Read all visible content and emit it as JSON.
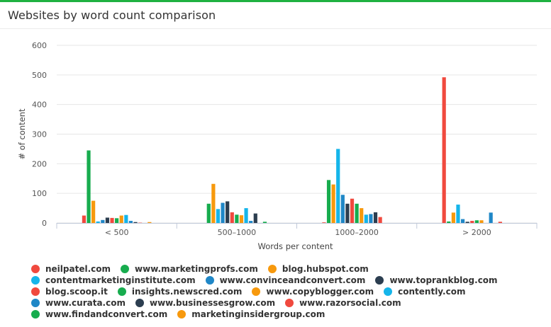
{
  "header": {
    "title": "Websites by word count comparison"
  },
  "chart_data": {
    "type": "bar",
    "title": "Websites by word count comparison",
    "xlabel": "Words per content",
    "ylabel": "# of content",
    "ylim": [
      0,
      600
    ],
    "yticks": [
      0,
      100,
      200,
      300,
      400,
      500,
      600
    ],
    "grid": true,
    "legend_position": "bottom",
    "categories": [
      "< 500",
      "500–1000",
      "1000–2000",
      "> 2000"
    ],
    "series": [
      {
        "name": "neilpatel.com",
        "color": "#f0493e",
        "values": [
          25,
          0,
          2,
          492
        ]
      },
      {
        "name": "www.marketingprofs.com",
        "color": "#17ac4e",
        "values": [
          245,
          65,
          145,
          5
        ]
      },
      {
        "name": "blog.hubspot.com",
        "color": "#f7990d",
        "values": [
          75,
          132,
          130,
          35
        ]
      },
      {
        "name": "contentmarketinginstitute.com",
        "color": "#15b5ea",
        "values": [
          5,
          47,
          250,
          62
        ]
      },
      {
        "name": "www.convinceandconvert.com",
        "color": "#1f87c7",
        "values": [
          10,
          68,
          95,
          13
        ]
      },
      {
        "name": "www.toprankblog.com",
        "color": "#2c3e50",
        "values": [
          18,
          73,
          65,
          4
        ]
      },
      {
        "name": "blog.scoop.it",
        "color": "#f0493e",
        "values": [
          17,
          36,
          82,
          7
        ]
      },
      {
        "name": "insights.newscred.com",
        "color": "#17ac4e",
        "values": [
          16,
          28,
          65,
          9
        ]
      },
      {
        "name": "www.copyblogger.com",
        "color": "#f7990d",
        "values": [
          25,
          26,
          50,
          9
        ]
      },
      {
        "name": "contently.com",
        "color": "#15b5ea",
        "values": [
          27,
          50,
          28,
          0
        ]
      },
      {
        "name": "www.curata.com",
        "color": "#1f87c7",
        "values": [
          7,
          7,
          30,
          35
        ]
      },
      {
        "name": "www.businessesgrow.com",
        "color": "#2c3e50",
        "values": [
          3,
          32,
          36,
          0
        ]
      },
      {
        "name": "www.razorsocial.com",
        "color": "#f0493e",
        "values": [
          1,
          0,
          20,
          4
        ]
      },
      {
        "name": "www.findandconvert.com",
        "color": "#17ac4e",
        "values": [
          0,
          4,
          0,
          0
        ]
      },
      {
        "name": "marketinginsidergroup.com",
        "color": "#f7990d",
        "values": [
          3,
          0,
          0,
          0
        ]
      }
    ]
  }
}
